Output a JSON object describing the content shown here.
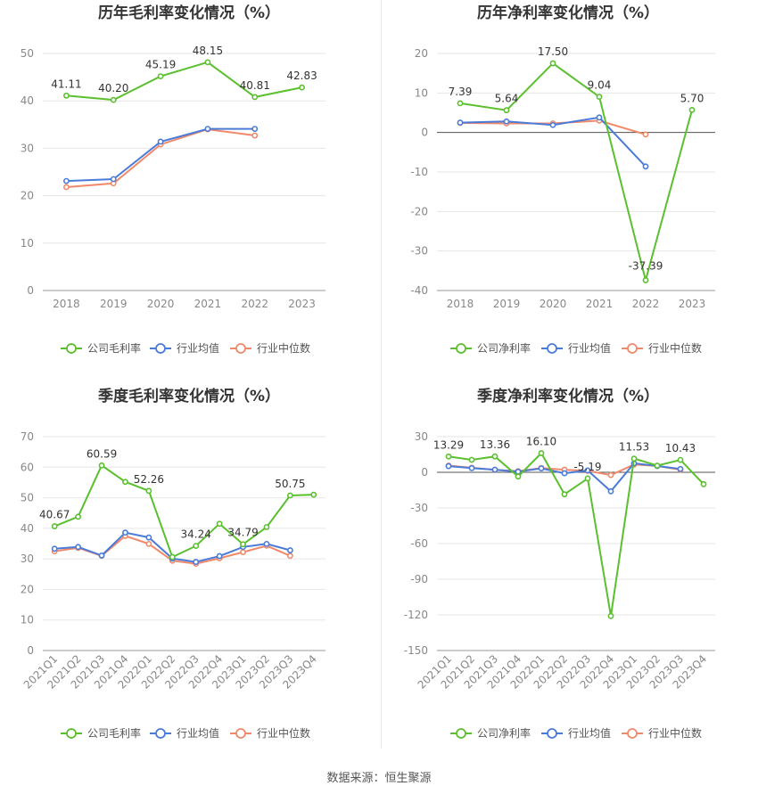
{
  "footer": {
    "source": "数据来源：恒生聚源"
  },
  "colors": {
    "company": "#5ac02e",
    "industry_avg": "#4a7bd8",
    "industry_median": "#f0896a"
  },
  "chart_data": [
    {
      "type": "line",
      "title": "历年毛利率变化情况（%）",
      "categories": [
        "2018",
        "2019",
        "2020",
        "2021",
        "2022",
        "2023"
      ],
      "ylim": [
        0,
        50
      ],
      "yticks": [
        0,
        10,
        20,
        30,
        40,
        50
      ],
      "series": [
        {
          "name": "公司毛利率",
          "values": [
            41.11,
            40.2,
            45.19,
            48.15,
            40.81,
            42.83
          ]
        },
        {
          "name": "行业均值",
          "values": [
            23.1,
            23.5,
            31.4,
            34.1,
            34.1,
            null
          ]
        },
        {
          "name": "行业中位数",
          "values": [
            21.8,
            22.6,
            30.8,
            34.0,
            32.7,
            null
          ]
        }
      ],
      "labels": [
        {
          "i": 0,
          "text": "41.11"
        },
        {
          "i": 1,
          "text": "40.20"
        },
        {
          "i": 2,
          "text": "45.19"
        },
        {
          "i": 3,
          "text": "48.15"
        },
        {
          "i": 4,
          "text": "40.81"
        },
        {
          "i": 5,
          "text": "42.83"
        }
      ],
      "rotate_x": false,
      "grid": true,
      "legend": "bottom"
    },
    {
      "type": "line",
      "title": "历年净利率变化情况（%）",
      "categories": [
        "2018",
        "2019",
        "2020",
        "2021",
        "2022",
        "2023"
      ],
      "ylim": [
        -40,
        20
      ],
      "yticks": [
        -40,
        -30,
        -20,
        -10,
        0,
        10,
        20
      ],
      "series": [
        {
          "name": "公司净利率",
          "values": [
            7.39,
            5.64,
            17.5,
            9.04,
            -37.39,
            5.7
          ]
        },
        {
          "name": "行业均值",
          "values": [
            2.5,
            2.8,
            1.9,
            3.8,
            -8.6,
            null
          ]
        },
        {
          "name": "行业中位数",
          "values": [
            2.4,
            2.3,
            2.3,
            3.0,
            -0.5,
            null
          ]
        }
      ],
      "labels": [
        {
          "i": 0,
          "text": "7.39"
        },
        {
          "i": 1,
          "text": "5.64"
        },
        {
          "i": 2,
          "text": "17.50"
        },
        {
          "i": 3,
          "text": "9.04"
        },
        {
          "i": 4,
          "text": "-37.39"
        },
        {
          "i": 5,
          "text": "5.70"
        }
      ],
      "rotate_x": false,
      "grid": true,
      "legend": "bottom"
    },
    {
      "type": "line",
      "title": "季度毛利率变化情况（%）",
      "categories": [
        "2021Q1",
        "2021Q2",
        "2021Q3",
        "2021Q4",
        "2022Q1",
        "2022Q2",
        "2022Q3",
        "2022Q4",
        "2023Q1",
        "2023Q2",
        "2023Q3",
        "2023Q4"
      ],
      "ylim": [
        0,
        70
      ],
      "yticks": [
        0,
        10,
        20,
        30,
        40,
        50,
        60,
        70
      ],
      "series": [
        {
          "name": "公司毛利率",
          "values": [
            40.67,
            43.8,
            60.59,
            55.2,
            52.26,
            30.6,
            34.24,
            41.5,
            34.79,
            40.4,
            50.75,
            51.0
          ]
        },
        {
          "name": "行业均值",
          "values": [
            33.3,
            33.9,
            31.1,
            38.6,
            37.0,
            30.1,
            29.0,
            30.9,
            33.9,
            34.9,
            32.8,
            null
          ]
        },
        {
          "name": "行业中位数",
          "values": [
            32.5,
            33.6,
            31.0,
            37.5,
            34.9,
            29.4,
            28.4,
            30.2,
            32.2,
            34.3,
            31.0,
            null
          ]
        }
      ],
      "labels": [
        {
          "i": 0,
          "text": "40.67"
        },
        {
          "i": 2,
          "text": "60.59"
        },
        {
          "i": 4,
          "text": "52.26"
        },
        {
          "i": 6,
          "text": "34.24"
        },
        {
          "i": 8,
          "text": "34.79"
        },
        {
          "i": 10,
          "text": "50.75"
        }
      ],
      "rotate_x": true,
      "grid": true,
      "legend": "bottom"
    },
    {
      "type": "line",
      "title": "季度净利率变化情况（%）",
      "categories": [
        "2021Q1",
        "2021Q2",
        "2021Q3",
        "2021Q4",
        "2022Q1",
        "2022Q2",
        "2022Q3",
        "2022Q4",
        "2023Q1",
        "2023Q2",
        "2023Q3",
        "2023Q4"
      ],
      "ylim": [
        -150,
        30
      ],
      "yticks": [
        -150,
        -120,
        -90,
        -60,
        -30,
        0,
        30
      ],
      "series": [
        {
          "name": "公司净利率",
          "values": [
            13.29,
            10.5,
            13.36,
            -3.5,
            16.1,
            -18.5,
            -5.19,
            -121.0,
            11.53,
            5.6,
            10.43,
            -10.0
          ]
        },
        {
          "name": "行业均值",
          "values": [
            5.2,
            3.5,
            2.2,
            0.5,
            3.3,
            -0.8,
            1.6,
            -16.0,
            7.6,
            5.3,
            2.8,
            null
          ]
        },
        {
          "name": "行业中位数",
          "values": [
            5.6,
            3.8,
            2.0,
            1.0,
            3.6,
            2.2,
            1.2,
            -2.3,
            6.5,
            5.3,
            2.2,
            null
          ]
        }
      ],
      "labels": [
        {
          "i": 0,
          "text": "13.29"
        },
        {
          "i": 2,
          "text": "13.36"
        },
        {
          "i": 4,
          "text": "16.10"
        },
        {
          "i": 6,
          "text": "-5.19"
        },
        {
          "i": 8,
          "text": "11.53"
        },
        {
          "i": 10,
          "text": "10.43"
        }
      ],
      "rotate_x": true,
      "grid": true,
      "legend": "bottom"
    }
  ]
}
